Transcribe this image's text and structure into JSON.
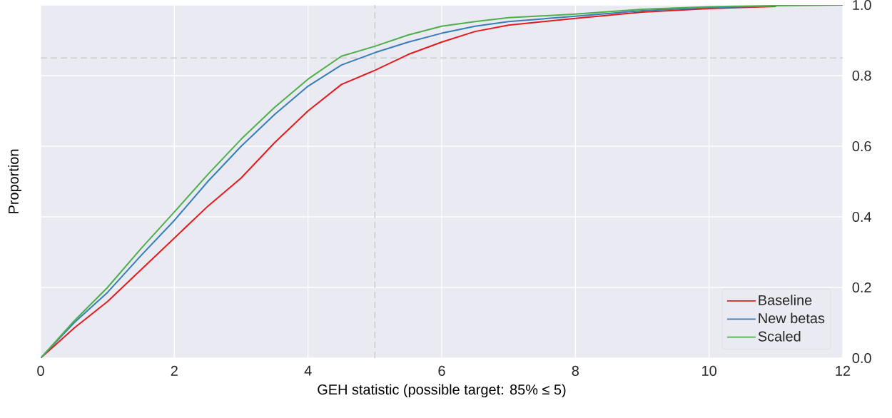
{
  "chart_data": {
    "type": "line",
    "xlabel": "GEH statistic (possible target: 85% ≤ 5)",
    "ylabel": "Proportion",
    "xlim": [
      0,
      12
    ],
    "ylim": [
      0,
      1
    ],
    "xticks": [
      0,
      2,
      4,
      6,
      8,
      10,
      12
    ],
    "yticks": [
      {
        "value": 0,
        "label": "0.0"
      },
      {
        "value": 0.2,
        "label": "0.2"
      },
      {
        "value": 0.4,
        "label": "0.4"
      },
      {
        "value": 0.6,
        "label": "0.6"
      },
      {
        "value": 0.8,
        "label": "0.8"
      },
      {
        "value": 1,
        "label": "1.0"
      }
    ],
    "x": [
      0,
      0.5,
      1,
      1.5,
      2,
      2.5,
      3,
      3.5,
      4,
      4.5,
      5,
      5.5,
      6,
      6.5,
      7,
      8,
      9,
      10,
      11,
      12
    ],
    "series": [
      {
        "name": "Baseline",
        "color": "#e41a1c",
        "values": [
          0,
          0.085,
          0.16,
          0.25,
          0.34,
          0.43,
          0.51,
          0.61,
          0.7,
          0.775,
          0.815,
          0.86,
          0.895,
          0.925,
          0.943,
          0.962,
          0.98,
          0.99,
          0.996,
          null
        ]
      },
      {
        "name": "New betas",
        "color": "#377eb8",
        "values": [
          0,
          0.1,
          0.186,
          0.29,
          0.39,
          0.5,
          0.6,
          0.69,
          0.77,
          0.83,
          0.865,
          0.895,
          0.92,
          0.94,
          0.953,
          0.968,
          0.984,
          0.993,
          0.997,
          null
        ]
      },
      {
        "name": "Scaled",
        "color": "#4daf4a",
        "values": [
          0,
          0.105,
          0.2,
          0.31,
          0.414,
          0.52,
          0.62,
          0.71,
          0.79,
          0.855,
          0.883,
          0.915,
          0.94,
          0.953,
          0.964,
          0.974,
          0.988,
          0.995,
          0.998,
          1.0
        ]
      }
    ],
    "ref_lines": [
      {
        "axis": "y",
        "value": 0.85,
        "color": "#cccccc",
        "line_style": "dashed"
      },
      {
        "axis": "x",
        "value": 5,
        "color": "#cccccc",
        "line_style": "dashed"
      }
    ],
    "grid": true,
    "legend": "bottom right"
  }
}
